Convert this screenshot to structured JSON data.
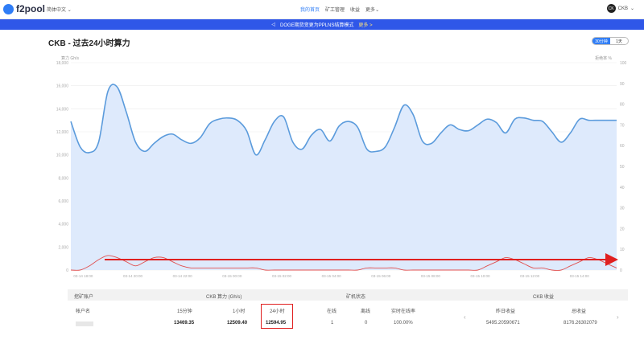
{
  "nav": {
    "logo_text": "f2pool",
    "language": "简体中文",
    "menu": [
      "我的首页",
      "矿工管理",
      "收益",
      "更多"
    ],
    "active_menu": "我的首页",
    "account": "CKB",
    "account_badge": "CK"
  },
  "banner": {
    "text": "DOGE期货变更为PPLNS结算模式",
    "more": "更多 >"
  },
  "page": {
    "title": "CKB - 过去24小时算力",
    "toggle": [
      "30分钟",
      "1天"
    ],
    "toggle_active": "30分钟"
  },
  "chart_data": {
    "type": "area",
    "ylabel_left": "算力 Gh/s",
    "ylabel_right": "拒绝率 %",
    "left_ylim": [
      0,
      18000
    ],
    "right_ylim": [
      0,
      100
    ],
    "left_ticks": [
      "0",
      "2,000",
      "4,000",
      "6,000",
      "8,000",
      "10,000",
      "12,000",
      "14,000",
      "16,000",
      "18,000"
    ],
    "right_ticks": [
      "0",
      "10",
      "20",
      "30",
      "40",
      "50",
      "60",
      "70",
      "80",
      "90",
      "100"
    ],
    "x_ticks": [
      "03-14 18:00",
      "03-14 20:00",
      "03-14 22:00",
      "03-15 00:00",
      "03-15 02:00",
      "03-15 04:00",
      "03-15 06:00",
      "03-15 08:00",
      "03-15 10:00",
      "03-15 12:00",
      "03-15 14:00"
    ],
    "grid": true,
    "series": [
      {
        "color": "#5b9bdc",
        "fill": "#deeafc",
        "values": [
          12900,
          10700,
          10200,
          11100,
          15500,
          15900,
          13700,
          11100,
          10300,
          11000,
          11600,
          11800,
          11300,
          11000,
          11500,
          12700,
          13100,
          13200,
          13000,
          12100,
          10000,
          11300,
          12900,
          13300,
          11100,
          10500,
          11700,
          12200,
          11200,
          12500,
          12900,
          12400,
          10500,
          10300,
          10700,
          12400,
          14300,
          13500,
          11200,
          11000,
          11900,
          12600,
          12200,
          12100,
          12600,
          13100,
          12800,
          11900,
          13100,
          13200,
          13000,
          12900,
          12000,
          11100,
          11900,
          13100,
          13000,
          13000,
          13000,
          13000
        ]
      },
      {
        "color": "#e05050",
        "axis": "right",
        "values": [
          0,
          0,
          2,
          5,
          7,
          6,
          4,
          2,
          4,
          6,
          6,
          4,
          2,
          1,
          1,
          1,
          1,
          1,
          1,
          1,
          1,
          0,
          0,
          0,
          0,
          0,
          0,
          0,
          0,
          0,
          0,
          0,
          1,
          1,
          1,
          1,
          0,
          0,
          0,
          0,
          0,
          0,
          0,
          0,
          0,
          2,
          4,
          6,
          5,
          3,
          1,
          1,
          0,
          0,
          2,
          4,
          6,
          5,
          3,
          1
        ]
      }
    ]
  },
  "table": {
    "groups": [
      "挖矿账户",
      "CKB 算力 (Gh/s)",
      "矿机状态",
      "CKB 收益"
    ],
    "headers": {
      "account": "帐户名",
      "m15": "15分钟",
      "h1": "1小时",
      "h24": "24小时",
      "online": "在线",
      "offline": "离线",
      "realtime_online": "实时在线率",
      "yesterday": "昨日收益",
      "total": "总收益"
    },
    "row": {
      "m15": "13469.35",
      "h1": "12509.40",
      "h24": "12594.95",
      "online": "1",
      "offline": "0",
      "realtime_online": "100.00%",
      "yesterday": "5495.20590671",
      "total": "8176.26302079"
    },
    "prev": "‹",
    "next": "›"
  }
}
